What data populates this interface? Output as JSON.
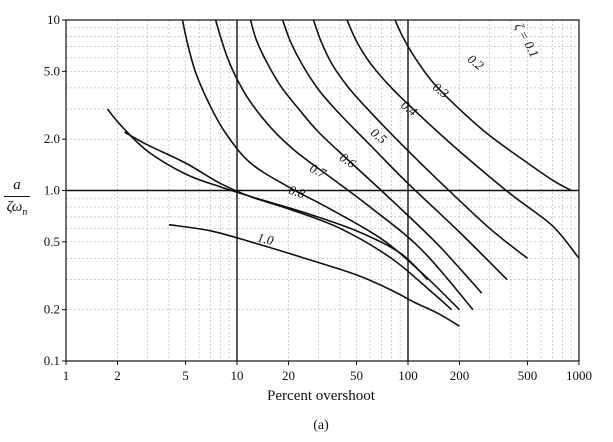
{
  "figure": {
    "caption": "(a)"
  },
  "chart_data": {
    "type": "line",
    "title": "",
    "xlabel": "Percent overshoot",
    "ylabel": {
      "numerator": "a",
      "denominator_symbol": "ζω",
      "denominator_subscript": "n"
    },
    "xscale": "log",
    "yscale": "log",
    "xlim": [
      1,
      1000
    ],
    "ylim": [
      0.1,
      10
    ],
    "grid": true,
    "x_ticks": [
      {
        "value": 1,
        "label": "1"
      },
      {
        "value": 2,
        "label": "2"
      },
      {
        "value": 5,
        "label": "5"
      },
      {
        "value": 10,
        "label": "10"
      },
      {
        "value": 20,
        "label": "20"
      },
      {
        "value": 50,
        "label": "50"
      },
      {
        "value": 100,
        "label": "100"
      },
      {
        "value": 200,
        "label": "200"
      },
      {
        "value": 500,
        "label": "500"
      },
      {
        "value": 1000,
        "label": "1000"
      }
    ],
    "y_ticks": [
      {
        "value": 0.1,
        "label": "0.1"
      },
      {
        "value": 0.2,
        "label": "0.2"
      },
      {
        "value": 0.5,
        "label": "0.5"
      },
      {
        "value": 1.0,
        "label": "1.0"
      },
      {
        "value": 2.0,
        "label": "2.0"
      },
      {
        "value": 5.0,
        "label": "5.0"
      },
      {
        "value": 10,
        "label": "10"
      }
    ],
    "series": [
      {
        "name": "ζ = 0.1",
        "label_at": [
          470,
          7.4
        ],
        "label_rotate": 62,
        "points": [
          [
            84,
            10
          ],
          [
            93,
            8
          ],
          [
            110,
            6
          ],
          [
            140,
            4.3
          ],
          [
            200,
            3
          ],
          [
            300,
            2.1
          ],
          [
            500,
            1.45
          ],
          [
            700,
            1.15
          ],
          [
            900,
            1.0
          ]
        ]
      },
      {
        "name": "0.2",
        "label_at": [
          240,
          5.4
        ],
        "label_rotate": 38,
        "points": [
          [
            44,
            10
          ],
          [
            50,
            7.5
          ],
          [
            60,
            5.6
          ],
          [
            80,
            4
          ],
          [
            120,
            2.7
          ],
          [
            200,
            1.7
          ],
          [
            400,
            0.95
          ],
          [
            700,
            0.62
          ],
          [
            1000,
            0.4
          ]
        ]
      },
      {
        "name": "0.3",
        "label_at": [
          150,
          3.7
        ],
        "label_rotate": 38,
        "points": [
          [
            28,
            10
          ],
          [
            31,
            7.5
          ],
          [
            36,
            5.5
          ],
          [
            45,
            4.0
          ],
          [
            60,
            2.9
          ],
          [
            90,
            1.9
          ],
          [
            150,
            1.15
          ],
          [
            300,
            0.6
          ],
          [
            500,
            0.4
          ]
        ]
      },
      {
        "name": "0.4",
        "label_at": [
          98,
          2.9
        ],
        "label_rotate": 38,
        "points": [
          [
            18.5,
            10
          ],
          [
            20.5,
            7.5
          ],
          [
            24,
            5.5
          ],
          [
            30,
            3.9
          ],
          [
            40,
            2.8
          ],
          [
            60,
            1.85
          ],
          [
            100,
            1.1
          ],
          [
            200,
            0.57
          ],
          [
            380,
            0.3
          ]
        ]
      },
      {
        "name": "0.5",
        "label_at": [
          65,
          2.0
        ],
        "label_rotate": 40,
        "points": [
          [
            12,
            10
          ],
          [
            13,
            7.6
          ],
          [
            15,
            5.6
          ],
          [
            18,
            4.1
          ],
          [
            23,
            3.0
          ],
          [
            30,
            2.2
          ],
          [
            45,
            1.5
          ],
          [
            80,
            0.88
          ],
          [
            150,
            0.48
          ],
          [
            270,
            0.25
          ]
        ]
      },
      {
        "name": "0.6",
        "label_at": [
          43,
          1.43
        ],
        "label_rotate": 35,
        "points": [
          [
            7.5,
            10
          ],
          [
            8.0,
            8
          ],
          [
            8.8,
            6
          ],
          [
            10,
            4.5
          ],
          [
            12,
            3.3
          ],
          [
            16,
            2.3
          ],
          [
            22,
            1.7
          ],
          [
            35,
            1.2
          ],
          [
            60,
            0.8
          ],
          [
            120,
            0.45
          ],
          [
            240,
            0.2
          ]
        ]
      },
      {
        "name": "0.7",
        "label_at": [
          29,
          1.24
        ],
        "label_rotate": 25,
        "points": [
          [
            4.8,
            10
          ],
          [
            5.1,
            7.5
          ],
          [
            5.7,
            5
          ],
          [
            6.8,
            3.3
          ],
          [
            8.5,
            2.2
          ],
          [
            12,
            1.45
          ],
          [
            20,
            1.05
          ],
          [
            35,
            0.78
          ],
          [
            70,
            0.52
          ],
          [
            120,
            0.33
          ],
          [
            200,
            0.2
          ]
        ]
      },
      {
        "name": "0.8",
        "label_at": [
          22,
          0.93
        ],
        "label_rotate": 18,
        "points": [
          [
            2.2,
            2.2
          ],
          [
            3,
            1.85
          ],
          [
            5,
            1.45
          ],
          [
            8,
            1.1
          ],
          [
            12,
            0.92
          ],
          [
            20,
            0.78
          ],
          [
            40,
            0.6
          ],
          [
            80,
            0.4
          ],
          [
            140,
            0.25
          ],
          [
            180,
            0.2
          ]
        ]
      },
      {
        "name": "1.0",
        "label_at": [
          14.5,
          0.49
        ],
        "label_rotate": 12,
        "points": [
          [
            1.75,
            3.0
          ],
          [
            2.1,
            2.4
          ],
          [
            3,
            1.7
          ],
          [
            5,
            1.25
          ],
          [
            8,
            1.05
          ],
          [
            13,
            0.9
          ],
          [
            25,
            0.74
          ],
          [
            50,
            0.58
          ],
          [
            90,
            0.43
          ],
          [
            130,
            0.3
          ]
        ]
      },
      {
        "name": "",
        "label_at": null,
        "label_rotate": 0,
        "points": [
          [
            4,
            0.63
          ],
          [
            7,
            0.58
          ],
          [
            12,
            0.5
          ],
          [
            25,
            0.4
          ],
          [
            50,
            0.32
          ],
          [
            80,
            0.26
          ],
          [
            110,
            0.22
          ],
          [
            150,
            0.19
          ],
          [
            200,
            0.16
          ]
        ]
      }
    ]
  }
}
